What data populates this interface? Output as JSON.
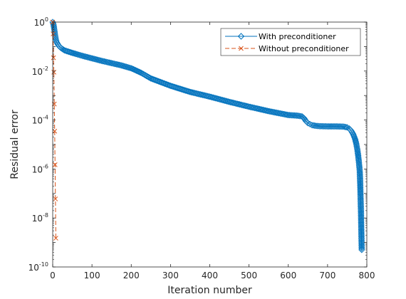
{
  "chart_data": {
    "type": "line",
    "xlabel": "Iteration number",
    "ylabel": "Residual error",
    "xlim": [
      0,
      800
    ],
    "ylim_log10": [
      -10,
      0
    ],
    "yscale": "log",
    "grid": false,
    "legend_position": "top-right",
    "x_ticks": [
      "0",
      "100",
      "200",
      "300",
      "400",
      "500",
      "600",
      "700",
      "800"
    ],
    "y_ticks": [
      {
        "base": "10",
        "exp": "0"
      },
      {
        "base": "10",
        "exp": "-2"
      },
      {
        "base": "10",
        "exp": "-4"
      },
      {
        "base": "10",
        "exp": "-6"
      },
      {
        "base": "10",
        "exp": "-8"
      },
      {
        "base": "10",
        "exp": "-10"
      }
    ],
    "series": [
      {
        "name": "With preconditioner",
        "color": "#0072bd",
        "marker": "diamond",
        "x": [
          0,
          2,
          4,
          6,
          8,
          10,
          15,
          20,
          30,
          50,
          75,
          100,
          125,
          150,
          175,
          200,
          225,
          250,
          300,
          350,
          400,
          450,
          500,
          550,
          600,
          625,
          635,
          640,
          645,
          650,
          655,
          660,
          670,
          680,
          700,
          720,
          740,
          750,
          755,
          760,
          765,
          770,
          773,
          776,
          778,
          780,
          782,
          783,
          784,
          785,
          786,
          787
        ],
        "y": [
          1.0,
          0.8,
          0.5,
          0.3,
          0.2,
          0.15,
          0.11,
          0.09,
          0.07,
          0.055,
          0.042,
          0.033,
          0.026,
          0.021,
          0.017,
          0.013,
          0.0085,
          0.005,
          0.0025,
          0.0014,
          0.0009,
          0.00055,
          0.00035,
          0.00023,
          0.00016,
          0.00015,
          0.00014,
          0.00012,
          9e-05,
          7.5e-05,
          6.8e-05,
          6.2e-05,
          5.8e-05,
          5.6e-05,
          5.5e-05,
          5.5e-05,
          5.4e-05,
          5e-05,
          4.5e-05,
          3.7e-05,
          2.7e-05,
          1.7e-05,
          1.1e-05,
          6e-06,
          3.5e-06,
          1.8e-06,
          8e-07,
          3e-07,
          8e-08,
          2e-08,
          3e-09,
          5e-10
        ]
      },
      {
        "name": "Without preconditioner",
        "color": "#d95319",
        "marker": "x",
        "x": [
          0,
          1,
          2,
          3,
          4,
          5,
          6,
          7,
          8
        ],
        "y": [
          1.0,
          0.33,
          0.035,
          0.009,
          0.00045,
          3.5e-05,
          1.5e-06,
          6e-08,
          1.5e-09
        ]
      }
    ]
  }
}
